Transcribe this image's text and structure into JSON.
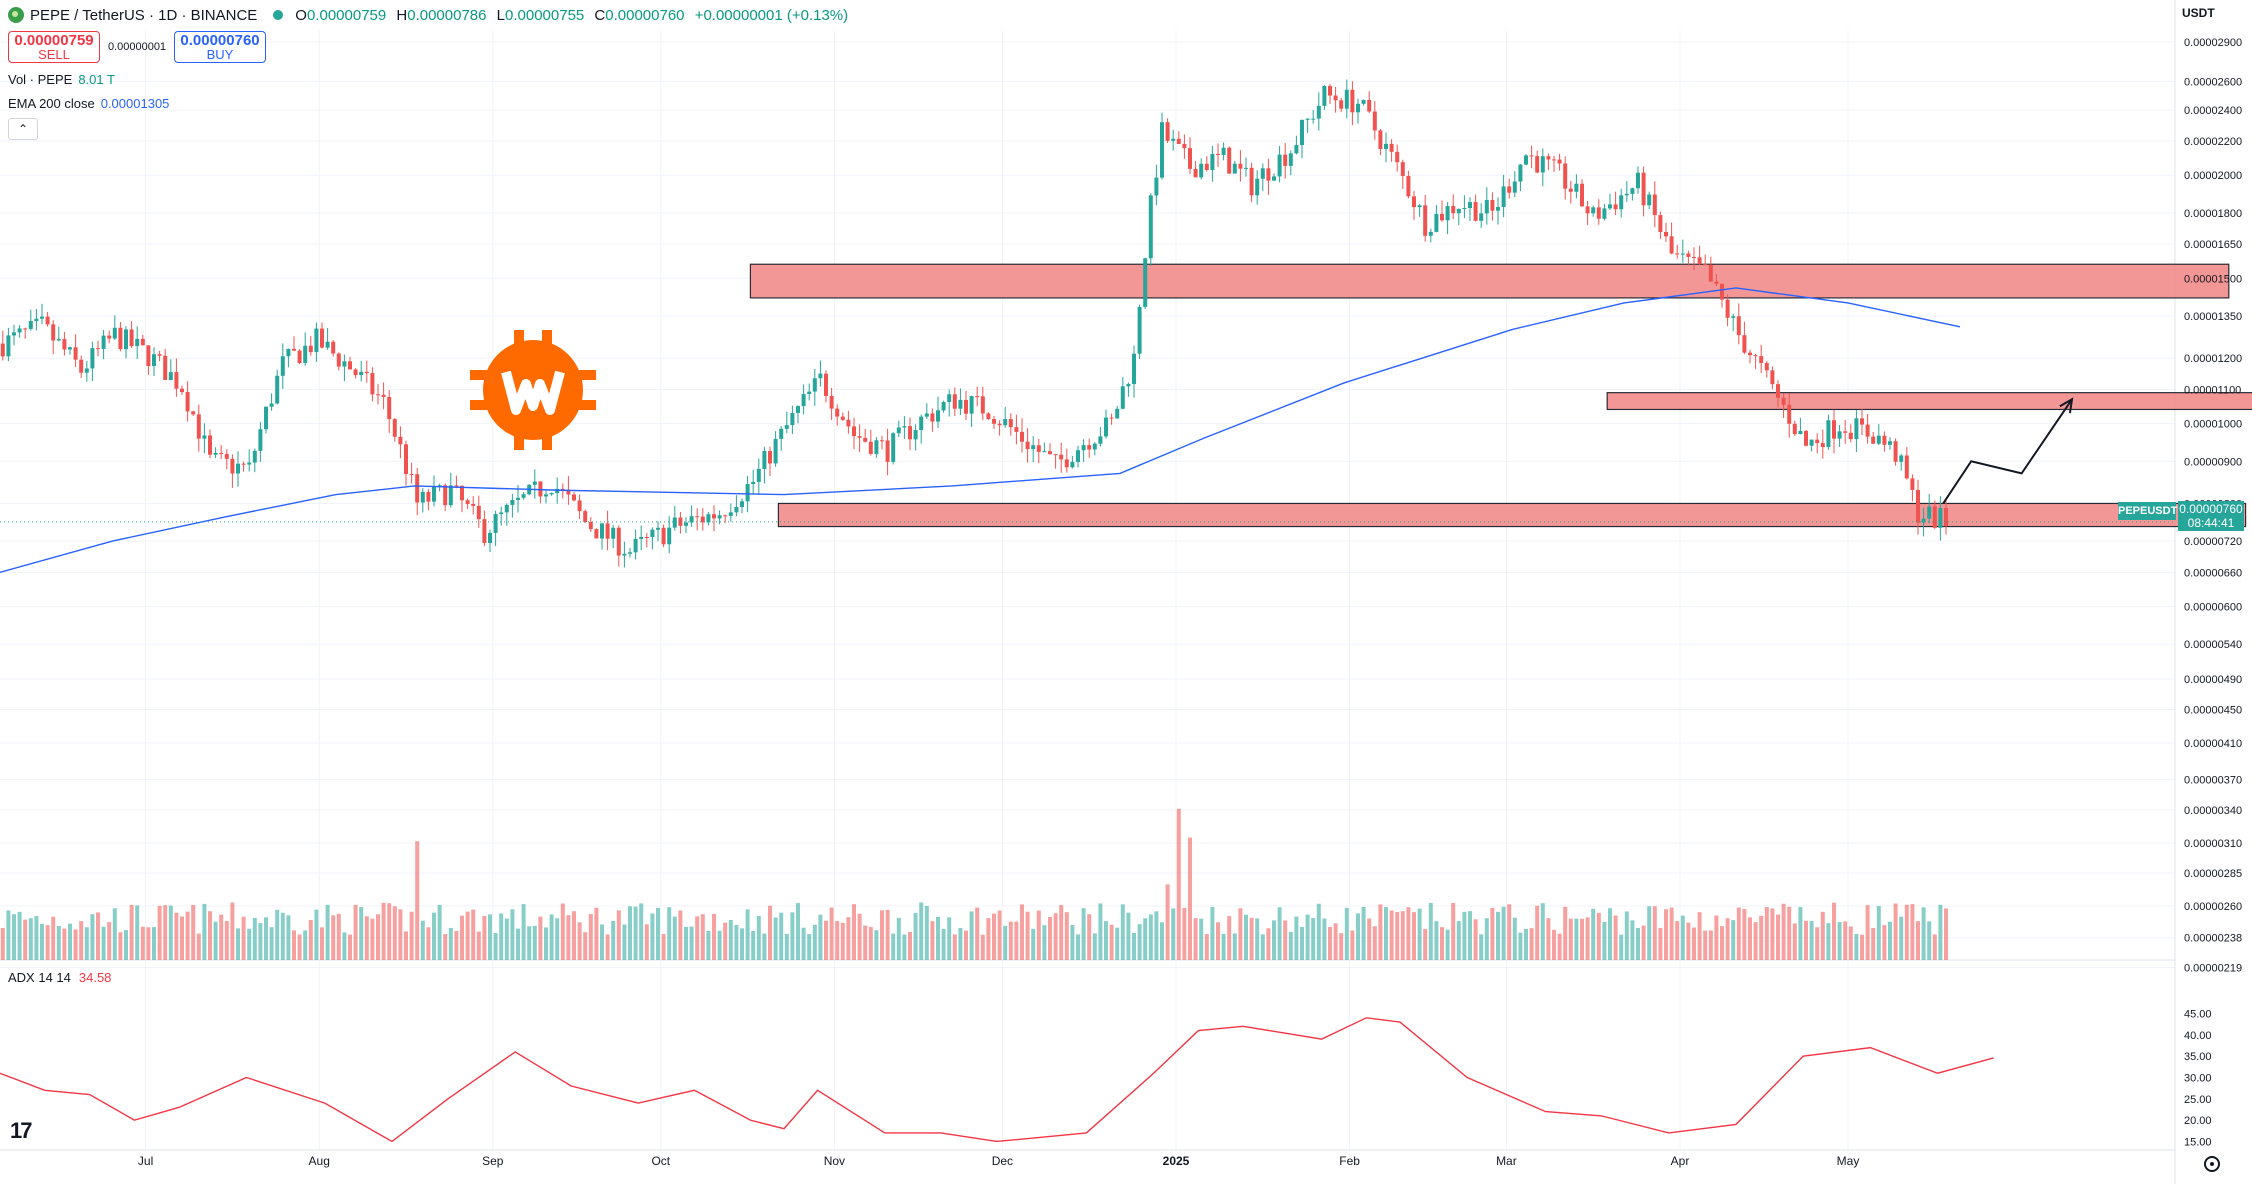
{
  "header": {
    "symbol": "PEPE / TetherUS · 1D · BINANCE",
    "open_label": "O",
    "open": "0.00000759",
    "high_label": "H",
    "high": "0.00000786",
    "low_label": "L",
    "low": "0.00000755",
    "close_label": "C",
    "close": "0.00000760",
    "change": "+0.00000001 (+0.13%)"
  },
  "trade": {
    "sell_price": "0.00000759",
    "sell_label": "SELL",
    "spread": "0.00000001",
    "buy_price": "0.00000760",
    "buy_label": "BUY"
  },
  "legend": {
    "volume_name": "Vol · PEPE",
    "volume_value": "8.01 T",
    "ema_name": "EMA 200 close",
    "ema_value": "0.00001305",
    "collapse_glyph": "⌃"
  },
  "adx": {
    "name": "ADX 14 14",
    "value": "34.58"
  },
  "axis": {
    "unit": "USDT",
    "price_ticks": [
      "0.00002900",
      "0.00002600",
      "0.00002400",
      "0.00002200",
      "0.00002000",
      "0.00001800",
      "0.00001650",
      "0.00001500",
      "0.00001350",
      "0.00001200",
      "0.00001100",
      "0.00001000",
      "0.00000900",
      "0.00000800",
      "0.00000720",
      "0.00000660",
      "0.00000600",
      "0.00000540",
      "0.00000490",
      "0.00000450",
      "0.00000410",
      "0.00000370",
      "0.00000340",
      "0.00000310",
      "0.00000285",
      "0.00000260",
      "0.00000238",
      "0.00000219"
    ],
    "adx_ticks": [
      "45.00",
      "40.00",
      "35.00",
      "30.00",
      "25.00",
      "20.00",
      "15.00"
    ],
    "time_ticks": [
      "Jul",
      "Aug",
      "Sep",
      "Oct",
      "Nov",
      "Dec",
      "2025",
      "Feb",
      "Mar",
      "Apr",
      "May"
    ]
  },
  "last_price_tag": {
    "symbol": "PEPEUSDT",
    "price": "0.00000760",
    "countdown": "08:44:41"
  },
  "colors": {
    "up": "#26a69a",
    "down": "#ef5350",
    "ema": "#2962ff",
    "zone_fill": "#f28b8b",
    "adx": "#f23645"
  },
  "icons": [
    "pepe-logo-icon",
    "market-open-dot-icon",
    "collapse-chevron-icon",
    "tradingview-logo-icon",
    "settings-gear-icon",
    "watermark-logo-icon"
  ],
  "chart_data": {
    "type": "candlestick",
    "symbol": "PEPEUSDT",
    "interval": "1D",
    "log_scale": true,
    "grid": true,
    "price_range": [
      2e-06,
      3e-05
    ],
    "price_keypoints": [
      {
        "d": 0,
        "p": 1.25e-05
      },
      {
        "d": 7,
        "p": 1.31e-05
      },
      {
        "d": 14,
        "p": 1.16e-05
      },
      {
        "d": 20,
        "p": 1.28e-05
      },
      {
        "d": 26,
        "p": 1.21e-05
      },
      {
        "d": 32,
        "p": 1.11e-05
      },
      {
        "d": 37,
        "p": 9e-06
      },
      {
        "d": 44,
        "p": 8.8e-06
      },
      {
        "d": 50,
        "p": 1.18e-05
      },
      {
        "d": 56,
        "p": 1.26e-05
      },
      {
        "d": 62,
        "p": 1.17e-05
      },
      {
        "d": 68,
        "p": 1.06e-05
      },
      {
        "d": 74,
        "p": 8e-06
      },
      {
        "d": 80,
        "p": 8.3e-06
      },
      {
        "d": 86,
        "p": 7.4e-06
      },
      {
        "d": 92,
        "p": 8e-06
      },
      {
        "d": 98,
        "p": 8.5e-06
      },
      {
        "d": 104,
        "p": 7.6e-06
      },
      {
        "d": 112,
        "p": 7e-06
      },
      {
        "d": 120,
        "p": 7.5e-06
      },
      {
        "d": 128,
        "p": 7.8e-06
      },
      {
        "d": 134,
        "p": 8.5e-06
      },
      {
        "d": 140,
        "p": 9.9e-06
      },
      {
        "d": 146,
        "p": 1.13e-05
      },
      {
        "d": 152,
        "p": 9.7e-06
      },
      {
        "d": 158,
        "p": 9.3e-06
      },
      {
        "d": 164,
        "p": 1.01e-05
      },
      {
        "d": 170,
        "p": 1.07e-05
      },
      {
        "d": 176,
        "p": 1.04e-05
      },
      {
        "d": 182,
        "p": 9.6e-06
      },
      {
        "d": 188,
        "p": 8.9e-06
      },
      {
        "d": 194,
        "p": 9.6e-06
      },
      {
        "d": 198,
        "p": 1e-05
      },
      {
        "d": 202,
        "p": 1.2e-05
      },
      {
        "d": 207,
        "p": 2.25e-05
      },
      {
        "d": 212,
        "p": 2.05e-05
      },
      {
        "d": 218,
        "p": 2.1e-05
      },
      {
        "d": 223,
        "p": 1.95e-05
      },
      {
        "d": 230,
        "p": 2.15e-05
      },
      {
        "d": 236,
        "p": 2.5e-05
      },
      {
        "d": 242,
        "p": 2.45e-05
      },
      {
        "d": 248,
        "p": 2.1e-05
      },
      {
        "d": 254,
        "p": 1.75e-05
      },
      {
        "d": 260,
        "p": 1.85e-05
      },
      {
        "d": 266,
        "p": 1.8e-05
      },
      {
        "d": 272,
        "p": 2.12e-05
      },
      {
        "d": 278,
        "p": 2e-05
      },
      {
        "d": 284,
        "p": 1.78e-05
      },
      {
        "d": 292,
        "p": 1.95e-05
      },
      {
        "d": 298,
        "p": 1.6e-05
      },
      {
        "d": 304,
        "p": 1.52e-05
      },
      {
        "d": 310,
        "p": 1.28e-05
      },
      {
        "d": 316,
        "p": 1.1e-05
      },
      {
        "d": 322,
        "p": 9.4e-06
      },
      {
        "d": 328,
        "p": 1e-05
      },
      {
        "d": 334,
        "p": 9.7e-06
      },
      {
        "d": 338,
        "p": 9.2e-06
      },
      {
        "d": 342,
        "p": 7.8e-06
      },
      {
        "d": 347,
        "p": 7.6e-06
      }
    ],
    "ema200_keypoints": [
      {
        "d": 0,
        "p": 6.6e-06
      },
      {
        "d": 20,
        "p": 7.2e-06
      },
      {
        "d": 40,
        "p": 7.7e-06
      },
      {
        "d": 60,
        "p": 8.2e-06
      },
      {
        "d": 74,
        "p": 8.4e-06
      },
      {
        "d": 100,
        "p": 8.3e-06
      },
      {
        "d": 140,
        "p": 8.2e-06
      },
      {
        "d": 170,
        "p": 8.4e-06
      },
      {
        "d": 200,
        "p": 8.7e-06
      },
      {
        "d": 215,
        "p": 9.6e-06
      },
      {
        "d": 240,
        "p": 1.12e-05
      },
      {
        "d": 270,
        "p": 1.3e-05
      },
      {
        "d": 290,
        "p": 1.4e-05
      },
      {
        "d": 310,
        "p": 1.46e-05
      },
      {
        "d": 330,
        "p": 1.4e-05
      },
      {
        "d": 350,
        "p": 1.31e-05
      }
    ],
    "zones": [
      {
        "from_day": 134,
        "to_day": 398,
        "low": 1.42e-05,
        "high": 1.56e-05
      },
      {
        "from_day": 287,
        "to_day": 404,
        "low": 1.04e-05,
        "high": 1.09e-05
      },
      {
        "from_day": 139,
        "to_day": 401,
        "low": 7.5e-06,
        "high": 8e-06
      }
    ],
    "projection": [
      {
        "d": 347,
        "p": 8e-06
      },
      {
        "d": 352,
        "p": 9e-06
      },
      {
        "d": 361,
        "p": 8.7e-06
      },
      {
        "d": 370,
        "p": 1.07e-05
      }
    ],
    "adx_keypoints": [
      {
        "d": 0,
        "v": 31
      },
      {
        "d": 8,
        "v": 27
      },
      {
        "d": 16,
        "v": 26
      },
      {
        "d": 24,
        "v": 20
      },
      {
        "d": 32,
        "v": 23
      },
      {
        "d": 44,
        "v": 30
      },
      {
        "d": 58,
        "v": 24
      },
      {
        "d": 70,
        "v": 15
      },
      {
        "d": 80,
        "v": 25
      },
      {
        "d": 92,
        "v": 36
      },
      {
        "d": 102,
        "v": 28
      },
      {
        "d": 114,
        "v": 24
      },
      {
        "d": 124,
        "v": 27
      },
      {
        "d": 134,
        "v": 20
      },
      {
        "d": 140,
        "v": 18
      },
      {
        "d": 146,
        "v": 27
      },
      {
        "d": 158,
        "v": 17
      },
      {
        "d": 168,
        "v": 17
      },
      {
        "d": 178,
        "v": 15
      },
      {
        "d": 194,
        "v": 17
      },
      {
        "d": 206,
        "v": 31
      },
      {
        "d": 214,
        "v": 41
      },
      {
        "d": 222,
        "v": 42
      },
      {
        "d": 236,
        "v": 39
      },
      {
        "d": 244,
        "v": 44
      },
      {
        "d": 250,
        "v": 43
      },
      {
        "d": 262,
        "v": 30
      },
      {
        "d": 276,
        "v": 22
      },
      {
        "d": 286,
        "v": 21
      },
      {
        "d": 298,
        "v": 17
      },
      {
        "d": 310,
        "v": 19
      },
      {
        "d": 322,
        "v": 35
      },
      {
        "d": 334,
        "v": 37
      },
      {
        "d": 346,
        "v": 31
      },
      {
        "d": 356,
        "v": 34.58
      }
    ],
    "adx_range": [
      13,
      47
    ],
    "volume_spikes": [
      {
        "d": 74,
        "v": 3.3
      },
      {
        "d": 210,
        "v": 4.2
      },
      {
        "d": 212,
        "v": 3.4
      },
      {
        "d": 208,
        "v": 2.1
      }
    ]
  }
}
